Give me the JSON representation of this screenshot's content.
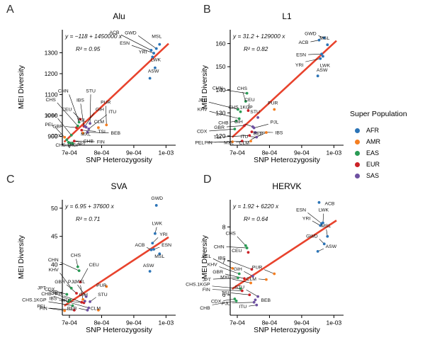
{
  "axes": {
    "x_label": "SNP Heterozygosity",
    "y_label": "MEI Diversity",
    "xticks": [
      {
        "value": 0.0007,
        "label": "7e-04"
      },
      {
        "value": 0.0008,
        "label": "8e-04"
      },
      {
        "value": 0.0009,
        "label": "9e-04"
      },
      {
        "value": 0.001,
        "label": "1e-03"
      }
    ]
  },
  "legend": {
    "title": "Super Population",
    "items": [
      {
        "label": "AFR",
        "color": "#2b74b7"
      },
      {
        "label": "AMR",
        "color": "#f57e20"
      },
      {
        "label": "EAS",
        "color": "#2a9b55"
      },
      {
        "label": "EUR",
        "color": "#cb2227"
      },
      {
        "label": "SAS",
        "color": "#6e51a1"
      }
    ]
  },
  "style_colors": {
    "trend_line": "#e8432d",
    "axis": "#000000",
    "label_text": "#111111"
  },
  "points_columns": [
    "population",
    "super_population",
    "snp_heterozygosity",
    "mei_diversity",
    "label_dx",
    "label_dy"
  ],
  "chart_data": [
    {
      "panel": "A",
      "title": "Alu",
      "type": "scatter",
      "equation": "y = −118 + 1450000 x",
      "r2": "R² = 0.95",
      "regression": {
        "intercept": -118,
        "slope": 1450000
      },
      "xlim": [
        0.000678,
        0.00103
      ],
      "ylim": [
        858,
        1410
      ],
      "yticks": [
        900,
        1000,
        1100,
        1200,
        1300
      ],
      "points": [
        [
          "PEL",
          "AMR",
          0.000685,
          896,
          -15,
          -16
        ],
        [
          "CDX",
          "EAS",
          0.000692,
          884,
          -8,
          -4
        ],
        [
          "CHB",
          "EAS",
          0.000697,
          872,
          21,
          -2
        ],
        [
          "JPT",
          "EAS",
          0.000702,
          868,
          10,
          1
        ],
        [
          "KHV",
          "EAS",
          0.000706,
          906,
          -21,
          -26
        ],
        [
          "CHS.1KGP",
          "EAS",
          0.00071,
          866,
          -7,
          2
        ],
        [
          "FIN",
          "EUR",
          0.000715,
          878,
          32,
          1
        ],
        [
          "GBR",
          "EUR",
          0.000722,
          942,
          -19,
          -2
        ],
        [
          "CHS",
          "EAS",
          0.000726,
          950,
          -31,
          -35
        ],
        [
          "CHN",
          "EAS",
          0.00073,
          968,
          -15,
          -42
        ],
        [
          "CEU",
          "EUR",
          0.000734,
          982,
          -12,
          -12
        ],
        [
          "TSI",
          "EUR",
          0.000738,
          930,
          23,
          2
        ],
        [
          "MXL",
          "AMR",
          0.000742,
          916,
          4,
          1
        ],
        [
          "IBS",
          "EUR",
          0.000745,
          948,
          -5,
          -35
        ],
        [
          "GIH",
          "SAS",
          0.000748,
          948,
          15,
          -22
        ],
        [
          "PJL",
          "SAS",
          0.000752,
          944,
          -6,
          -8
        ],
        [
          "BEB",
          "SAS",
          0.000756,
          920,
          33,
          1
        ],
        [
          "ITU",
          "SAS",
          0.00076,
          936,
          28,
          -22
        ],
        [
          "STU",
          "SAS",
          0.000764,
          962,
          1,
          -44
        ],
        [
          "CLM",
          "AMR",
          0.00079,
          942,
          1,
          -6
        ],
        [
          "PUR",
          "AMR",
          0.000815,
          955,
          -1,
          -30
        ],
        [
          "ASW",
          "AFR",
          0.00095,
          1178,
          5,
          -8
        ],
        [
          "ACB",
          "AFR",
          0.000954,
          1312,
          -45,
          -23
        ],
        [
          "YRI",
          "AFR",
          0.000958,
          1280,
          -8,
          -5
        ],
        [
          "ESN",
          "AFR",
          0.000962,
          1298,
          -34,
          -12
        ],
        [
          "LWK",
          "AFR",
          0.000966,
          1228,
          1,
          -9
        ],
        [
          "GWD",
          "AFR",
          0.00097,
          1320,
          -28,
          -20
        ],
        [
          "MSL",
          "AFR",
          0.00098,
          1340,
          -4,
          -9
        ]
      ]
    },
    {
      "panel": "B",
      "title": "L1",
      "type": "scatter",
      "equation": "y = 31.2 + 129000 x",
      "r2": "R² = 0.82",
      "regression": {
        "intercept": 31.2,
        "slope": 129000
      },
      "xlim": [
        0.000678,
        0.00103
      ],
      "ylim": [
        116,
        166
      ],
      "yticks": [
        120,
        130,
        140,
        150,
        160
      ],
      "points": [
        [
          "PEL",
          "AMR",
          0.000685,
          117.5,
          -40,
          1
        ],
        [
          "CDX",
          "EAS",
          0.000692,
          123,
          -39,
          3
        ],
        [
          "CHB",
          "EAS",
          0.000697,
          126.5,
          -11,
          2
        ],
        [
          "JPT",
          "EAS",
          0.000702,
          131.5,
          -44,
          -11
        ],
        [
          "KHV",
          "EAS",
          0.000706,
          127.5,
          -45,
          -11
        ],
        [
          "CHS.1KGP",
          "EAS",
          0.00071,
          130.5,
          0,
          -4
        ],
        [
          "FIN",
          "EUR",
          0.000715,
          117.8,
          -42,
          2
        ],
        [
          "GBR",
          "EUR",
          0.000722,
          124.5,
          -28,
          2
        ],
        [
          "CHS",
          "EAS",
          0.000726,
          135,
          -5,
          -16
        ],
        [
          "CHN",
          "EAS",
          0.00073,
          138.5,
          -34,
          -5
        ],
        [
          "CEU",
          "EUR",
          0.000734,
          131,
          2,
          -13
        ],
        [
          "TSI",
          "EUR",
          0.000738,
          120.2,
          -40,
          2
        ],
        [
          "MXL",
          "AMR",
          0.000742,
          117.8,
          -24,
          2
        ],
        [
          "IBS",
          "EUR",
          0.000745,
          121.8,
          33,
          1
        ],
        [
          "GIH",
          "SAS",
          0.000748,
          124,
          -14,
          -5
        ],
        [
          "PJL",
          "SAS",
          0.000752,
          123.5,
          23,
          -6
        ],
        [
          "BEB",
          "SAS",
          0.000756,
          121.5,
          4,
          1
        ],
        [
          "ITU",
          "SAS",
          0.00076,
          119.5,
          -12,
          -1
        ],
        [
          "STU",
          "SAS",
          0.000764,
          128,
          -4,
          -6
        ],
        [
          "CLM",
          "AMR",
          0.00079,
          121.5,
          -24,
          11
        ],
        [
          "PUR",
          "AMR",
          0.000815,
          131.5,
          -2,
          -7
        ],
        [
          "ASW",
          "AFR",
          0.00095,
          146,
          6,
          -6
        ],
        [
          "ACB",
          "AFR",
          0.000954,
          161.5,
          -15,
          3
        ],
        [
          "YRI",
          "AFR",
          0.000958,
          153.5,
          -24,
          5
        ],
        [
          "ESN",
          "AFR",
          0.000962,
          155.5,
          -22,
          1
        ],
        [
          "LWK",
          "AFR",
          0.000966,
          154.5,
          3,
          9
        ],
        [
          "GWD",
          "AFR",
          0.00097,
          162.5,
          -11,
          -4
        ],
        [
          "MSL",
          "AFR",
          0.00098,
          159.5,
          -4,
          -7
        ]
      ]
    },
    {
      "panel": "C",
      "title": "SVA",
      "type": "scatter",
      "equation": "y = 6.95 + 37600 x",
      "r2": "R² = 0.71",
      "regression": {
        "intercept": 6.95,
        "slope": 37600
      },
      "xlim": [
        0.000678,
        0.00103
      ],
      "ylim": [
        31,
        51.5
      ],
      "yticks": [
        35,
        40,
        45,
        50
      ],
      "points": [
        [
          "PEL",
          "AMR",
          0.000685,
          31.8,
          -26,
          -4
        ],
        [
          "CDX",
          "EAS",
          0.000692,
          34.7,
          -17,
          -5
        ],
        [
          "CHB",
          "EAS",
          0.000697,
          33.4,
          -24,
          -9
        ],
        [
          "JPT",
          "EAS",
          0.000702,
          33.7,
          -34,
          -15
        ],
        [
          "KHV",
          "EAS",
          0.000706,
          35.8,
          -18,
          -24
        ],
        [
          "CHS.1KGP",
          "EAS",
          0.00071,
          32.7,
          -37,
          -6
        ],
        [
          "FIN",
          "EUR",
          0.000715,
          31.9,
          -38,
          -3
        ],
        [
          "GBR",
          "EUR",
          0.000722,
          34.9,
          -16,
          -14
        ],
        [
          "CHS",
          "EAS",
          0.000726,
          39.6,
          -3,
          -14
        ],
        [
          "CHN",
          "EAS",
          0.00073,
          38.9,
          -29,
          -13
        ],
        [
          "CEU",
          "EUR",
          0.000734,
          36.9,
          12,
          -22
        ],
        [
          "TSI",
          "EUR",
          0.000738,
          33.3,
          -28,
          -10
        ],
        [
          "MXL",
          "AMR",
          0.000742,
          33.8,
          -4,
          -23
        ],
        [
          "IBS",
          "EUR",
          0.000745,
          33.2,
          -38,
          -4
        ],
        [
          "GIH",
          "SAS",
          0.000748,
          33.5,
          -2,
          -7
        ],
        [
          "PJL",
          "SAS",
          0.000752,
          34.3,
          -14,
          -19
        ],
        [
          "BEB",
          "SAS",
          0.000756,
          31.9,
          -15,
          -3
        ],
        [
          "ITU",
          "SAS",
          0.00076,
          32.3,
          -28,
          -8
        ],
        [
          "STU",
          "SAS",
          0.000764,
          33.4,
          11,
          -8
        ],
        [
          "CLM",
          "AMR",
          0.00079,
          31.9,
          -4,
          -3
        ],
        [
          "PUR",
          "AMR",
          0.000815,
          36.1,
          -7,
          -2
        ],
        [
          "ASW",
          "AFR",
          0.00095,
          38.8,
          -2,
          -6
        ],
        [
          "ACB",
          "AFR",
          0.000954,
          42.6,
          -9,
          -5
        ],
        [
          "YRI",
          "AFR",
          0.000958,
          43.8,
          10,
          -10
        ],
        [
          "ESN",
          "AFR",
          0.000962,
          42.7,
          11,
          -4
        ],
        [
          "LWK",
          "AFR",
          0.000966,
          45.5,
          3,
          -12
        ],
        [
          "GWD",
          "AFR",
          0.00097,
          50.5,
          1,
          -8
        ],
        [
          "MSL",
          "AFR",
          0.00098,
          41.9,
          0,
          3
        ]
      ]
    },
    {
      "panel": "D",
      "title": "HERVK",
      "type": "scatter",
      "equation": "y = 1.92 + 6220 x",
      "r2": "R² = 0.64",
      "regression": {
        "intercept": 1.92,
        "slope": 6220
      },
      "xlim": [
        0.000678,
        0.00103
      ],
      "ylim": [
        5.4,
        8.8
      ],
      "yticks": [
        6,
        7,
        8
      ],
      "points": [
        [
          "PEL",
          "AMR",
          0.000685,
          6.78,
          -30,
          -15
        ],
        [
          "CDX",
          "EAS",
          0.000692,
          5.88,
          -19,
          3
        ],
        [
          "CHB",
          "EAS",
          0.000697,
          5.82,
          -37,
          6
        ],
        [
          "JPT",
          "EAS",
          0.000702,
          6.5,
          -38,
          2
        ],
        [
          "KHV",
          "EAS",
          0.000706,
          6.62,
          -31,
          -11
        ],
        [
          "CHS.1KGP",
          "EAS",
          0.00071,
          6.18,
          -43,
          -4
        ],
        [
          "FIN",
          "EUR",
          0.000715,
          6.12,
          -45,
          -2
        ],
        [
          "GBR",
          "EUR",
          0.000722,
          6.48,
          -30,
          -7
        ],
        [
          "CHS",
          "EAS",
          0.000726,
          7.45,
          -14,
          -15
        ],
        [
          "CHN",
          "EAS",
          0.00073,
          7.38,
          -32,
          -2
        ],
        [
          "CEU",
          "EUR",
          0.000734,
          7.25,
          -9,
          -3
        ],
        [
          "TSI",
          "EUR",
          0.000738,
          6.0,
          -29,
          -3
        ],
        [
          "MXL",
          "AMR",
          0.000742,
          6.35,
          -29,
          -6
        ],
        [
          "IBS",
          "EUR",
          0.000745,
          6.75,
          -37,
          -14
        ],
        [
          "GIH",
          "SAS",
          0.000748,
          6.55,
          -15,
          -8
        ],
        [
          "PJL",
          "SAS",
          0.000752,
          5.78,
          -34,
          1
        ],
        [
          "BEB",
          "SAS",
          0.000756,
          5.85,
          8,
          0
        ],
        [
          "ITU",
          "SAS",
          0.00076,
          5.7,
          -14,
          2
        ],
        [
          "STU",
          "SAS",
          0.000764,
          5.95,
          -19,
          -11
        ],
        [
          "CLM",
          "AMR",
          0.00079,
          6.45,
          -14,
          -1
        ],
        [
          "PUR",
          "AMR",
          0.000815,
          6.62,
          -17,
          -7
        ],
        [
          "ASW",
          "AFR",
          0.00095,
          7.28,
          11,
          -5
        ],
        [
          "ACB",
          "AFR",
          0.000954,
          8.72,
          8,
          1
        ],
        [
          "YRI",
          "AFR",
          0.000958,
          8.04,
          -14,
          -8
        ],
        [
          "ESN",
          "AFR",
          0.000962,
          8.1,
          -22,
          -17
        ],
        [
          "LWK",
          "AFR",
          0.000966,
          8.12,
          1,
          -16
        ],
        [
          "GWD",
          "AFR",
          0.00097,
          7.5,
          -9,
          -9
        ],
        [
          "MSL",
          "AFR",
          0.00098,
          7.72,
          -2,
          -13
        ]
      ]
    }
  ]
}
